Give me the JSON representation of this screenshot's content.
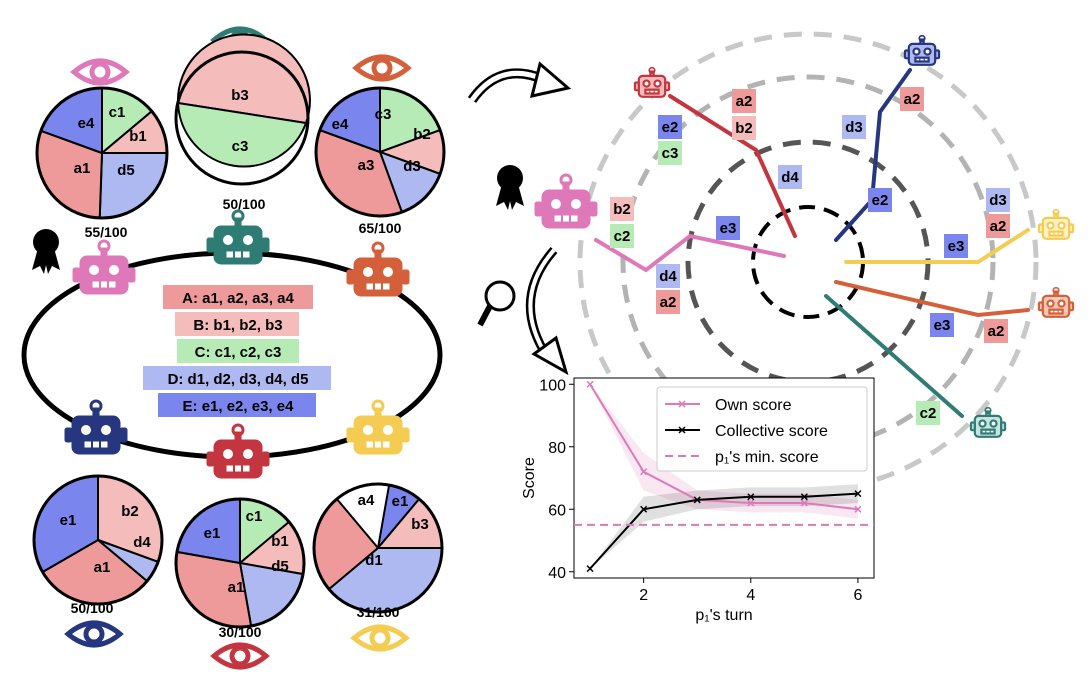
{
  "colors": {
    "A": "#ef9a9a",
    "B": "#f5bcbc",
    "C": "#b7ebb5",
    "D": "#aeb9f2",
    "E": "#7a86ee",
    "pink": "#de78b8",
    "teal": "#2f7c75",
    "orange": "#d4603b",
    "navy": "#26377f",
    "red": "#c4363f",
    "yellow": "#f4cc52"
  },
  "icons": {
    "robot": "robot-icon",
    "eye": "eye-icon",
    "medal": "award-ribbon-icon",
    "search": "magnifier-icon",
    "arrow": "curved-arrow-icon"
  },
  "left_panel": {
    "scores": {
      "pink": "55/100",
      "teal": "50/100",
      "orange": "65/100",
      "navy": "50/100",
      "red": "30/100",
      "yellow": "31/100"
    },
    "groups": [
      "A: a1, a2, a3, a4",
      "B: b1, b2, b3",
      "C: c1, c2, c3",
      "D: d1, d2, d3, d4, d5",
      "E: e1, e2, e3, e4"
    ],
    "pies": {
      "pink": [
        {
          "l": "c1",
          "c": "C"
        },
        {
          "l": "b1",
          "c": "B"
        },
        {
          "l": "d5",
          "c": "D"
        },
        {
          "l": "a1",
          "c": "A"
        },
        {
          "l": "e4",
          "c": "E"
        }
      ],
      "teal": [
        {
          "l": "b3",
          "c": "B"
        },
        {
          "l": "c3",
          "c": "C"
        }
      ],
      "orange": [
        {
          "l": "c3",
          "c": "C"
        },
        {
          "l": "b2",
          "c": "B"
        },
        {
          "l": "d3",
          "c": "D"
        },
        {
          "l": "a3",
          "c": "A"
        },
        {
          "l": "e4",
          "c": "E"
        }
      ],
      "navy": [
        {
          "l": "b2",
          "c": "B"
        },
        {
          "l": "d4",
          "c": "D"
        },
        {
          "l": "a1",
          "c": "A"
        },
        {
          "l": "e1",
          "c": "E"
        }
      ],
      "red": [
        {
          "l": "c1",
          "c": "C"
        },
        {
          "l": "b1",
          "c": "B"
        },
        {
          "l": "d5",
          "c": "D"
        },
        {
          "l": "a1",
          "c": "A"
        },
        {
          "l": "e1",
          "c": "E"
        }
      ],
      "yellow": [
        {
          "l": "e1",
          "c": "E"
        },
        {
          "l": "b3",
          "c": "B"
        },
        {
          "l": "d1",
          "c": "D"
        },
        {
          "l": "a4",
          "c": "A"
        }
      ]
    }
  },
  "radial": {
    "labels": [
      {
        "t": "a2",
        "c": "A"
      },
      {
        "t": "b2",
        "c": "B"
      },
      {
        "t": "e2",
        "c": "E"
      },
      {
        "t": "c3",
        "c": "C"
      },
      {
        "t": "d4",
        "c": "D"
      },
      {
        "t": "b2",
        "c": "B"
      },
      {
        "t": "c2",
        "c": "C"
      },
      {
        "t": "e3",
        "c": "E"
      },
      {
        "t": "d4",
        "c": "D"
      },
      {
        "t": "a2",
        "c": "A"
      },
      {
        "t": "a2",
        "c": "A"
      },
      {
        "t": "d3",
        "c": "D"
      },
      {
        "t": "e2",
        "c": "E"
      },
      {
        "t": "d3",
        "c": "D"
      },
      {
        "t": "a2",
        "c": "A"
      },
      {
        "t": "e3",
        "c": "E"
      },
      {
        "t": "e3",
        "c": "E"
      },
      {
        "t": "a2",
        "c": "A"
      },
      {
        "t": "c2",
        "c": "C"
      }
    ]
  },
  "chart_data": {
    "type": "line",
    "x": [
      1,
      2,
      3,
      4,
      5,
      6
    ],
    "series": [
      {
        "name": "Own score",
        "values": [
          100,
          72,
          63,
          62,
          62,
          60
        ],
        "band": [
          [
            100,
            100
          ],
          [
            66,
            78
          ],
          [
            60,
            66
          ],
          [
            59,
            65
          ],
          [
            59,
            65
          ],
          [
            57,
            63
          ]
        ]
      },
      {
        "name": "Collective score",
        "values": [
          41,
          60,
          63,
          64,
          64,
          65
        ],
        "band": [
          [
            41,
            41
          ],
          [
            56,
            64
          ],
          [
            60,
            66
          ],
          [
            61,
            67
          ],
          [
            61,
            67
          ],
          [
            62,
            68
          ]
        ]
      },
      {
        "name": "$p_1$'s min. score",
        "values": [
          55,
          55,
          55,
          55,
          55,
          55
        ]
      }
    ],
    "legend": [
      "Own score",
      "Collective score",
      "p₁'s min. score"
    ],
    "xlabel": "p₁'s turn",
    "ylabel": "Score",
    "xticks": [
      "2",
      "4",
      "6"
    ],
    "yticks": [
      "40",
      "60",
      "80",
      "100"
    ],
    "xlim": [
      0.7,
      6.3
    ],
    "ylim": [
      38,
      102
    ],
    "legend_position": "upper-right"
  }
}
